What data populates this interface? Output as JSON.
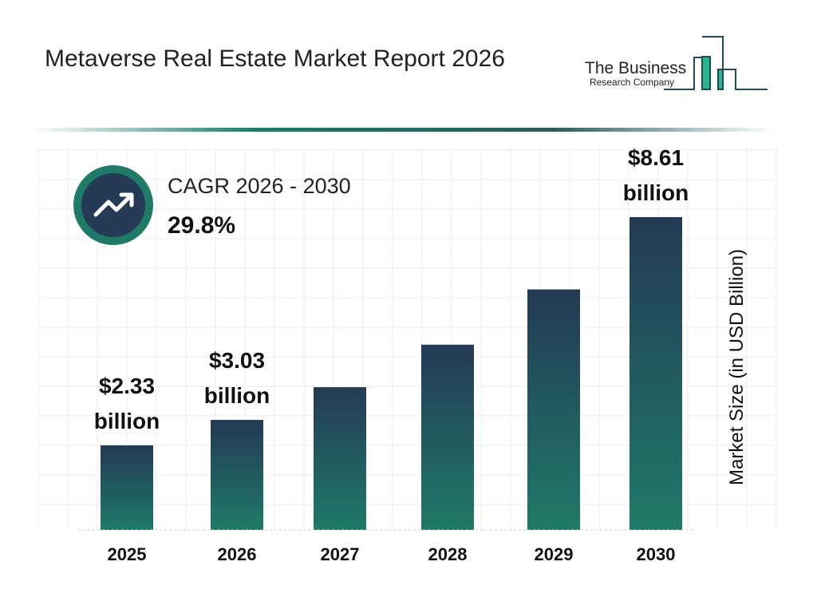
{
  "title": "Metaverse Real Estate Market Report 2026",
  "logo": {
    "line1": "The Business",
    "line2": "Research Company"
  },
  "cagr": {
    "label": "CAGR 2026 - 2030",
    "value": "29.8%",
    "icon": "trend-up-arrow-icon"
  },
  "colors": {
    "bar_top": "#243a55",
    "bar_bottom": "#1f7a68",
    "accent": "#1f7a68"
  },
  "chart_data": {
    "type": "bar",
    "title": "",
    "xlabel": "",
    "ylabel": "Market Size (in USD Billion)",
    "categories": [
      "2025",
      "2026",
      "2027",
      "2028",
      "2029",
      "2030"
    ],
    "values": [
      2.33,
      3.03,
      3.93,
      5.1,
      6.62,
      8.61
    ],
    "data_labels": [
      {
        "index": 0,
        "line1": "$2.33",
        "line2": "billion"
      },
      {
        "index": 1,
        "line1": "$3.03",
        "line2": "billion"
      },
      {
        "index": 5,
        "line1": "$8.61",
        "line2": "billion"
      }
    ],
    "grid": true,
    "ylim": [
      0,
      8.61
    ]
  }
}
